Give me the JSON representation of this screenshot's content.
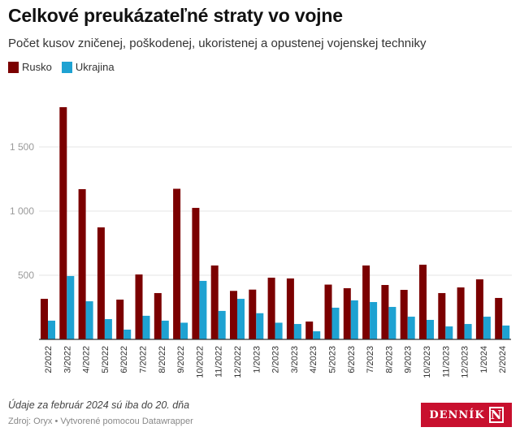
{
  "header": {
    "title": "Celkové preukázateľné straty vo vojne",
    "subtitle": "Počet kusov zničenej, poškodenej, ukoristenej a opustenej vojenskej techniky"
  },
  "legend": [
    {
      "label": "Rusko",
      "color": "#7b0000"
    },
    {
      "label": "Ukrajina",
      "color": "#1ea2d2"
    }
  ],
  "chart_data": {
    "type": "bar",
    "title": "Celkové preukázateľné straty vo vojne",
    "subtitle": "Počet kusov zničenej, poškodenej, ukoristenej a opustenej vojenskej techniky",
    "xlabel": "",
    "ylabel": "",
    "ylim": [
      0,
      1850
    ],
    "yticks": [
      500,
      1000,
      1500
    ],
    "ytick_labels": [
      "500",
      "1 000",
      "1 500"
    ],
    "grid": true,
    "legend_position": "top-left",
    "categories": [
      "2/2022",
      "3/2022",
      "4/2022",
      "5/2022",
      "6/2022",
      "7/2022",
      "8/2022",
      "9/2022",
      "10/2022",
      "11/2022",
      "12/2022",
      "1/2023",
      "2/2023",
      "3/2023",
      "4/2023",
      "5/2023",
      "6/2023",
      "7/2023",
      "8/2023",
      "9/2023",
      "10/2023",
      "11/2023",
      "12/2023",
      "1/2024",
      "2/2024"
    ],
    "series": [
      {
        "name": "Rusko",
        "color": "#7b0000",
        "values": [
          316,
          1810,
          1171,
          873,
          310,
          506,
          361,
          1174,
          1025,
          576,
          378,
          388,
          481,
          475,
          139,
          427,
          399,
          576,
          424,
          386,
          582,
          361,
          405,
          468,
          323
        ]
      },
      {
        "name": "Ukrajina",
        "color": "#1ea2d2",
        "values": [
          146,
          494,
          297,
          158,
          76,
          184,
          146,
          130,
          456,
          222,
          316,
          204,
          130,
          120,
          63,
          247,
          304,
          291,
          253,
          177,
          152,
          101,
          120,
          177,
          108
        ]
      }
    ]
  },
  "footer": {
    "note": "Údaje za február 2024 sú iba do 20. dňa",
    "source": "Zdroj: Oryx • Vytvorené pomocou Datawrapper",
    "logo_text": "DENNÍK",
    "logo_mark": "N"
  }
}
